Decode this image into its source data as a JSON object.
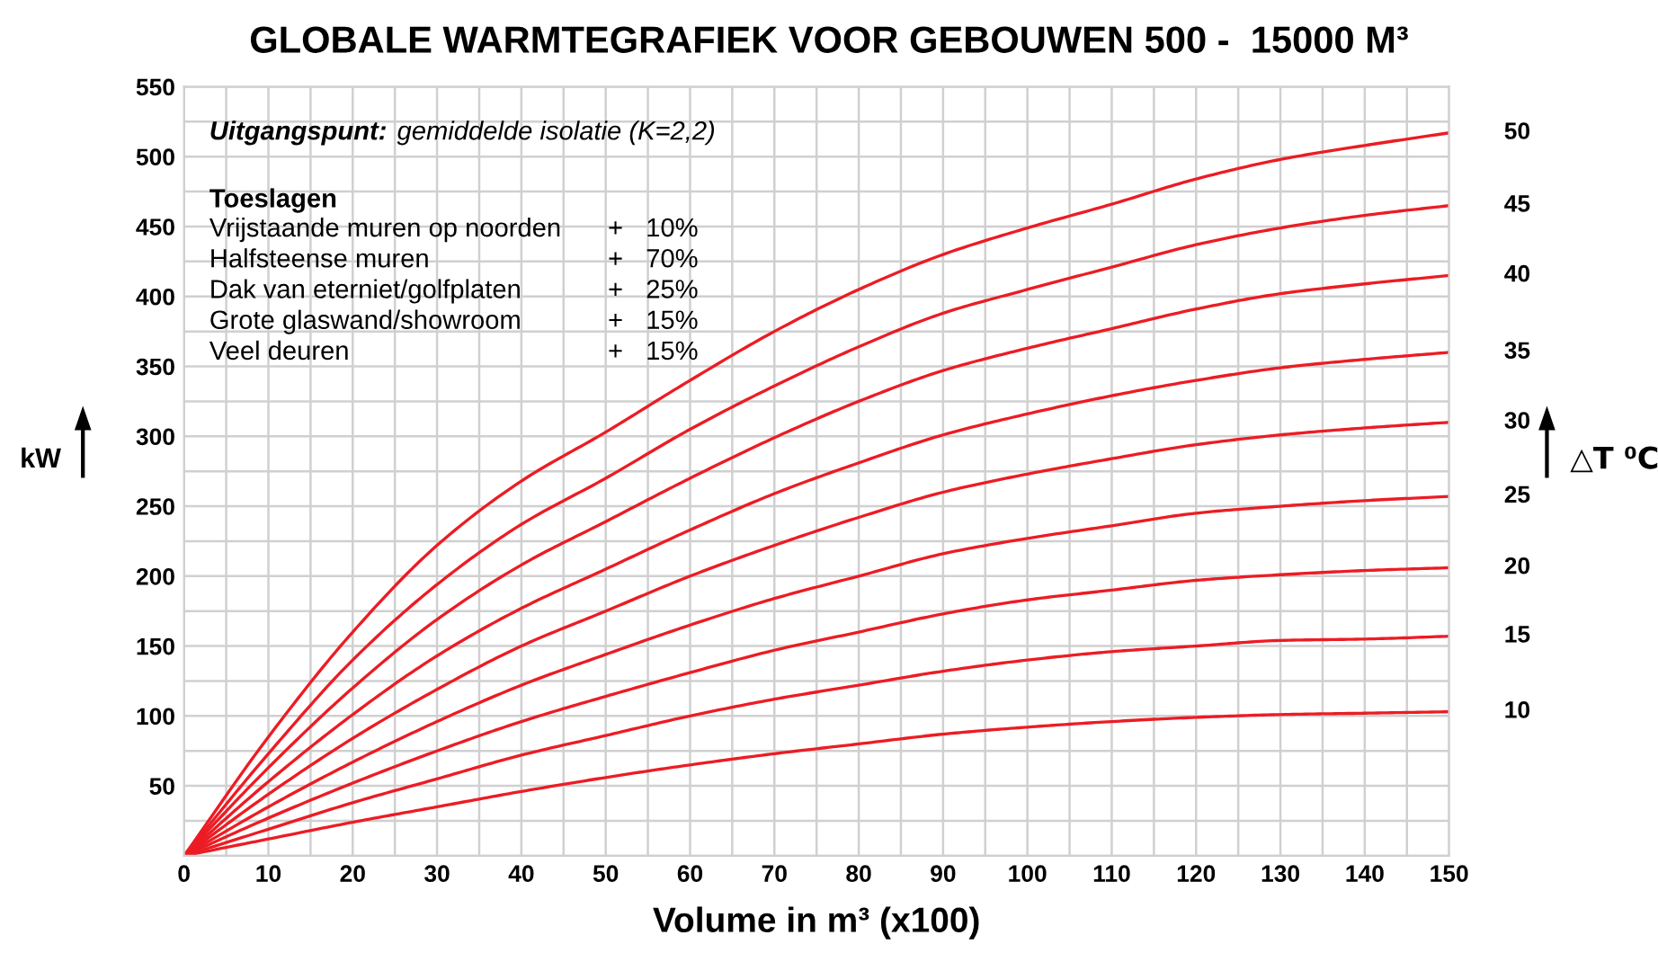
{
  "chart_data": {
    "type": "line",
    "title": "GLOBALE WARMTEGRAFIEK VOOR GEBOUWEN 500 -  15000 M³",
    "xlabel": "Volume in m³ (x100)",
    "ylabel": "kW",
    "y2label": "△T ⁰C",
    "x": [
      0,
      10,
      20,
      30,
      40,
      50,
      60,
      70,
      80,
      90,
      100,
      110,
      120,
      130,
      140,
      150
    ],
    "series": [
      {
        "name": "10",
        "color": "#ec1c24",
        "values": [
          0,
          12,
          24,
          35,
          46,
          56,
          65,
          73,
          80,
          87,
          92,
          96,
          99,
          101,
          102,
          103
        ]
      },
      {
        "name": "15",
        "color": "#ec1c24",
        "values": [
          0,
          19,
          38,
          55,
          72,
          86,
          100,
          112,
          122,
          132,
          140,
          146,
          150,
          154,
          155,
          157
        ]
      },
      {
        "name": "20",
        "color": "#ec1c24",
        "values": [
          0,
          27,
          52,
          75,
          96,
          114,
          131,
          147,
          160,
          173,
          183,
          190,
          197,
          201,
          204,
          206
        ]
      },
      {
        "name": "25",
        "color": "#ec1c24",
        "values": [
          0,
          35,
          67,
          96,
          122,
          144,
          165,
          184,
          200,
          216,
          227,
          236,
          245,
          250,
          254,
          257
        ]
      },
      {
        "name": "30",
        "color": "#ec1c24",
        "values": [
          0,
          44,
          84,
          119,
          150,
          175,
          200,
          222,
          242,
          260,
          273,
          284,
          294,
          301,
          306,
          310
        ]
      },
      {
        "name": "35",
        "color": "#ec1c24",
        "values": [
          0,
          53,
          101,
          143,
          177,
          205,
          233,
          259,
          281,
          301,
          316,
          329,
          340,
          349,
          355,
          360
        ]
      },
      {
        "name": "40",
        "color": "#ec1c24",
        "values": [
          0,
          63,
          120,
          169,
          208,
          239,
          270,
          299,
          325,
          347,
          363,
          377,
          391,
          402,
          409,
          415
        ]
      },
      {
        "name": "45",
        "color": "#ec1c24",
        "values": [
          0,
          73,
          140,
          194,
          237,
          270,
          305,
          336,
          364,
          388,
          405,
          421,
          437,
          449,
          458,
          465
        ]
      },
      {
        "name": "50",
        "color": "#ec1c24",
        "values": [
          0,
          85,
          160,
          222,
          268,
          303,
          340,
          375,
          405,
          430,
          449,
          466,
          484,
          498,
          508,
          517
        ]
      }
    ],
    "xlim": [
      0,
      150
    ],
    "xticks": [
      0,
      {
        "value": 5,
        "label": null
      },
      10,
      {
        "value": 15,
        "label": null
      },
      20,
      {
        "value": 25,
        "label": null
      },
      30,
      {
        "value": 35,
        "label": null
      },
      40,
      {
        "value": 45,
        "label": null
      },
      50,
      {
        "value": 55,
        "label": null
      },
      60,
      {
        "value": 65,
        "label": null
      },
      70,
      {
        "value": 75,
        "label": null
      },
      80,
      {
        "value": 85,
        "label": null
      },
      90,
      {
        "value": 95,
        "label": null
      },
      100,
      {
        "value": 105,
        "label": null
      },
      110,
      {
        "value": 115,
        "label": null
      },
      120,
      {
        "value": 125,
        "label": null
      },
      130,
      {
        "value": 135,
        "label": null
      },
      140,
      {
        "value": 145,
        "label": null
      },
      150
    ],
    "ylim": [
      0,
      550
    ],
    "yticks": [
      {
        "value": 0,
        "label": null
      },
      {
        "value": 25,
        "label": null
      },
      50,
      {
        "value": 75,
        "label": null
      },
      100,
      {
        "value": 125,
        "label": null
      },
      150,
      {
        "value": 175,
        "label": null
      },
      200,
      {
        "value": 225,
        "label": null
      },
      250,
      {
        "value": 275,
        "label": null
      },
      300,
      {
        "value": 325,
        "label": null
      },
      350,
      {
        "value": 375,
        "label": null
      },
      400,
      {
        "value": 425,
        "label": null
      },
      450,
      {
        "value": 475,
        "label": null
      },
      500,
      {
        "value": 525,
        "label": null
      },
      550
    ],
    "grid": true,
    "marker": "none",
    "line_style": "solid",
    "legend": false,
    "annotations": [
      "Uitgangspunt:",
      "gemiddelde isolatie (K=2,2)",
      "Toeslagen",
      "Vrijstaande muren op noorden",
      "+",
      "10%",
      "Halfsteense muren",
      "+",
      "70%",
      "Dak van eterniet/golfplaten",
      "+",
      "25%",
      "Grote glaswand/showroom",
      "+",
      "15%",
      "Veel deuren",
      "+",
      "15%"
    ]
  }
}
